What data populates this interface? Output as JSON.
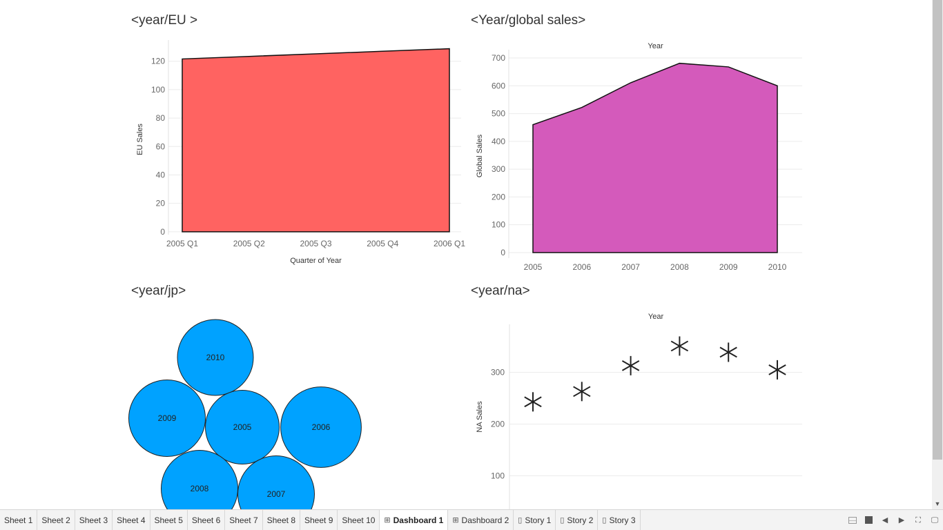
{
  "charts": {
    "eu": {
      "title": "<year/EU >",
      "chart_data": {
        "type": "area",
        "title": "<year/EU >",
        "xlabel": "Quarter of Year",
        "ylabel": "EU Sales",
        "categories": [
          "2005 Q1",
          "2005 Q2",
          "2005 Q3",
          "2005 Q4",
          "2006 Q1"
        ],
        "values": [
          121.6,
          123.4,
          125.2,
          127.0,
          128.8
        ],
        "y_ticks": [
          0,
          20,
          40,
          60,
          80,
          100,
          120
        ],
        "ylim": [
          -2,
          132
        ],
        "color": "#ff6361",
        "grid": true
      }
    },
    "global": {
      "title": "<Year/global sales>",
      "chart_data": {
        "type": "area",
        "title": "<Year/global sales>",
        "column_header": "Year",
        "xlabel": "",
        "ylabel": "Global Sales",
        "categories": [
          "2005",
          "2006",
          "2007",
          "2008",
          "2009",
          "2010"
        ],
        "values": [
          460,
          522,
          611,
          681,
          668,
          600
        ],
        "y_ticks": [
          0,
          100,
          200,
          300,
          400,
          500,
          600,
          700
        ],
        "ylim": [
          -20,
          715
        ],
        "color": "#d45abb",
        "grid": true
      }
    },
    "jp": {
      "title": "<year/jp>",
      "chart_data": {
        "type": "bubble",
        "title": "<year/jp>",
        "labels": [
          "2010",
          "2009",
          "2005",
          "2006",
          "2008",
          "2007"
        ],
        "values": [
          55,
          56,
          52,
          62,
          56,
          56
        ],
        "color": "#00a2ff"
      }
    },
    "na": {
      "title": "<year/na>",
      "chart_data": {
        "type": "scatter",
        "title": "<year/na>",
        "column_header": "Year",
        "xlabel": "",
        "ylabel": "NA Sales",
        "categories": [
          "2005",
          "2006",
          "2007",
          "2008",
          "2009",
          "2010"
        ],
        "values": [
          243,
          263,
          313,
          351,
          339,
          305
        ],
        "y_ticks": [
          100,
          200,
          300
        ],
        "ylim": [
          35,
          393
        ],
        "marker": "asterisk",
        "grid": true
      }
    }
  },
  "tabs": [
    {
      "label": "Sheet 1",
      "icon": "none",
      "active": false
    },
    {
      "label": "Sheet 2",
      "icon": "none",
      "active": false
    },
    {
      "label": "Sheet 3",
      "icon": "none",
      "active": false
    },
    {
      "label": "Sheet 4",
      "icon": "none",
      "active": false
    },
    {
      "label": "Sheet 5",
      "icon": "none",
      "active": false
    },
    {
      "label": "Sheet 6",
      "icon": "none",
      "active": false
    },
    {
      "label": "Sheet 7",
      "icon": "none",
      "active": false
    },
    {
      "label": "Sheet 8",
      "icon": "none",
      "active": false
    },
    {
      "label": "Sheet 9",
      "icon": "none",
      "active": false
    },
    {
      "label": "Sheet 10",
      "icon": "none",
      "active": false
    },
    {
      "label": "Dashboard 1",
      "icon": "dashboard-icon",
      "active": true
    },
    {
      "label": "Dashboard 2",
      "icon": "dashboard-icon",
      "active": false
    },
    {
      "label": "Story 1",
      "icon": "story-icon",
      "active": false
    },
    {
      "label": "Story 2",
      "icon": "story-icon",
      "active": false
    },
    {
      "label": "Story 3",
      "icon": "story-icon",
      "active": false
    }
  ],
  "controls": [
    "show-sheet-sorter-icon",
    "show-filmstrip-icon",
    "previous-tab-icon",
    "next-tab-icon",
    "presentation-mode-icon",
    "device-preview-icon"
  ]
}
